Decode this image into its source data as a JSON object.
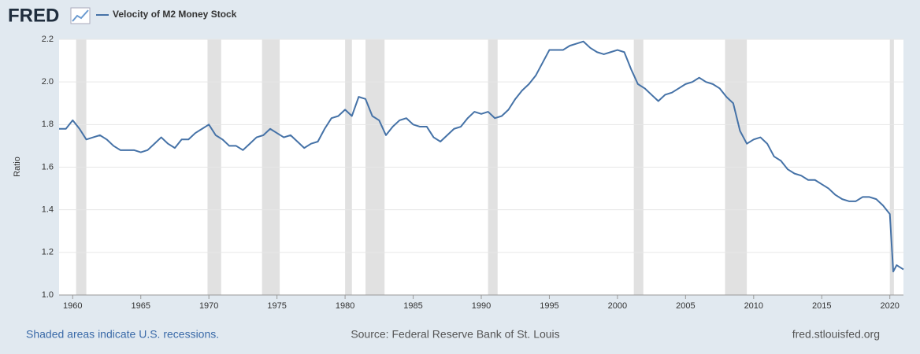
{
  "logo": "FRED",
  "chart_data": {
    "type": "line",
    "ylabel": "Ratio",
    "x": [
      1959,
      1959.5,
      1960,
      1960.5,
      1961,
      1961.5,
      1962,
      1962.5,
      1963,
      1963.5,
      1964,
      1964.5,
      1965,
      1965.5,
      1966,
      1966.5,
      1967,
      1967.5,
      1968,
      1968.5,
      1969,
      1969.5,
      1970,
      1970.5,
      1971,
      1971.5,
      1972,
      1972.5,
      1973,
      1973.5,
      1974,
      1974.5,
      1975,
      1975.5,
      1976,
      1976.5,
      1977,
      1977.5,
      1978,
      1978.5,
      1979,
      1979.5,
      1980,
      1980.5,
      1981,
      1981.5,
      1982,
      1982.5,
      1983,
      1983.5,
      1984,
      1984.5,
      1985,
      1985.5,
      1986,
      1986.5,
      1987,
      1987.5,
      1988,
      1988.5,
      1989,
      1989.5,
      1990,
      1990.5,
      1991,
      1991.5,
      1992,
      1992.5,
      1993,
      1993.5,
      1994,
      1994.5,
      1995,
      1995.5,
      1996,
      1996.5,
      1997,
      1997.5,
      1998,
      1998.5,
      1999,
      1999.5,
      2000,
      2000.5,
      2001,
      2001.5,
      2002,
      2002.5,
      2003,
      2003.5,
      2004,
      2004.5,
      2005,
      2005.5,
      2006,
      2006.5,
      2007,
      2007.5,
      2008,
      2008.5,
      2009,
      2009.5,
      2010,
      2010.5,
      2011,
      2011.5,
      2012,
      2012.5,
      2013,
      2013.5,
      2014,
      2014.5,
      2015,
      2015.5,
      2016,
      2016.5,
      2017,
      2017.5,
      2018,
      2018.5,
      2019,
      2019.5,
      2020,
      2020.25,
      2020.5,
      2021
    ],
    "series": [
      {
        "name": "Velocity of M2 Money Stock",
        "color": "#4572a7",
        "values": [
          1.78,
          1.78,
          1.82,
          1.78,
          1.73,
          1.74,
          1.75,
          1.73,
          1.7,
          1.68,
          1.68,
          1.68,
          1.67,
          1.68,
          1.71,
          1.74,
          1.71,
          1.69,
          1.73,
          1.73,
          1.76,
          1.78,
          1.8,
          1.75,
          1.73,
          1.7,
          1.7,
          1.68,
          1.71,
          1.74,
          1.75,
          1.78,
          1.76,
          1.74,
          1.75,
          1.72,
          1.69,
          1.71,
          1.72,
          1.78,
          1.83,
          1.84,
          1.87,
          1.84,
          1.93,
          1.92,
          1.84,
          1.82,
          1.75,
          1.79,
          1.82,
          1.83,
          1.8,
          1.79,
          1.79,
          1.74,
          1.72,
          1.75,
          1.78,
          1.79,
          1.83,
          1.86,
          1.85,
          1.86,
          1.83,
          1.84,
          1.87,
          1.92,
          1.96,
          1.99,
          2.03,
          2.09,
          2.15,
          2.15,
          2.15,
          2.17,
          2.18,
          2.19,
          2.16,
          2.14,
          2.13,
          2.14,
          2.15,
          2.14,
          2.06,
          1.99,
          1.97,
          1.94,
          1.91,
          1.94,
          1.95,
          1.97,
          1.99,
          2.0,
          2.02,
          2.0,
          1.99,
          1.97,
          1.93,
          1.9,
          1.77,
          1.71,
          1.73,
          1.74,
          1.71,
          1.65,
          1.63,
          1.59,
          1.57,
          1.56,
          1.54,
          1.54,
          1.52,
          1.5,
          1.47,
          1.45,
          1.44,
          1.44,
          1.46,
          1.46,
          1.45,
          1.42,
          1.38,
          1.11,
          1.14,
          1.12
        ]
      }
    ],
    "recessions": [
      [
        1960.25,
        1961.0
      ],
      [
        1969.9,
        1970.9
      ],
      [
        1973.9,
        1975.2
      ],
      [
        1980.0,
        1980.5
      ],
      [
        1981.5,
        1982.9
      ],
      [
        1990.5,
        1991.2
      ],
      [
        2001.2,
        2001.9
      ],
      [
        2007.9,
        2009.5
      ],
      [
        2020.0,
        2020.3
      ]
    ],
    "xlim": [
      1959,
      2021
    ],
    "xticks": [
      1960,
      1965,
      1970,
      1975,
      1980,
      1985,
      1990,
      1995,
      2000,
      2005,
      2010,
      2015,
      2020
    ],
    "ylim": [
      1.0,
      2.2
    ],
    "yticks": [
      {
        "value": 1.0,
        "label": "1.0"
      },
      1.2,
      1.4,
      1.6,
      1.8,
      {
        "value": 2.0,
        "label": "2.0"
      },
      2.2
    ],
    "grid": true,
    "recession_color": "#e1e1e1",
    "footer_left": "Shaded areas indicate U.S. recessions.",
    "footer_center": "Source: Federal Reserve Bank of St. Louis",
    "footer_right": "fred.stlouisfed.org"
  }
}
